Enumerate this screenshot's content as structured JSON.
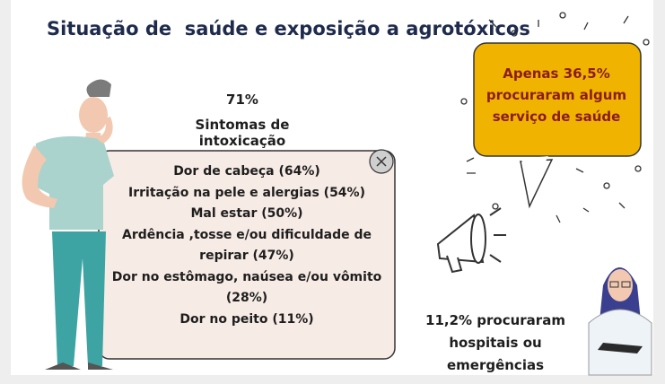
{
  "header": {
    "title": "Situação de  saúde e exposição a agrotóxicos"
  },
  "symptoms": {
    "percent": "71%",
    "label": "Sintomas de intoxicação",
    "items": [
      "Dor de cabeça (64%)",
      "Irritação na pele e alergias (54%)",
      "Mal estar (50%)",
      "Ardência ,tosse e/ou dificuldade de repirar (47%)",
      "Dor no estômago, naúsea e/ou vômito (28%)",
      "Dor no peito (11%)"
    ]
  },
  "callout": {
    "text": "Apenas 36,5% procuraram algum serviço de saúde"
  },
  "hospital": {
    "text": "11,2% procuraram hospitais ou emergências"
  }
}
